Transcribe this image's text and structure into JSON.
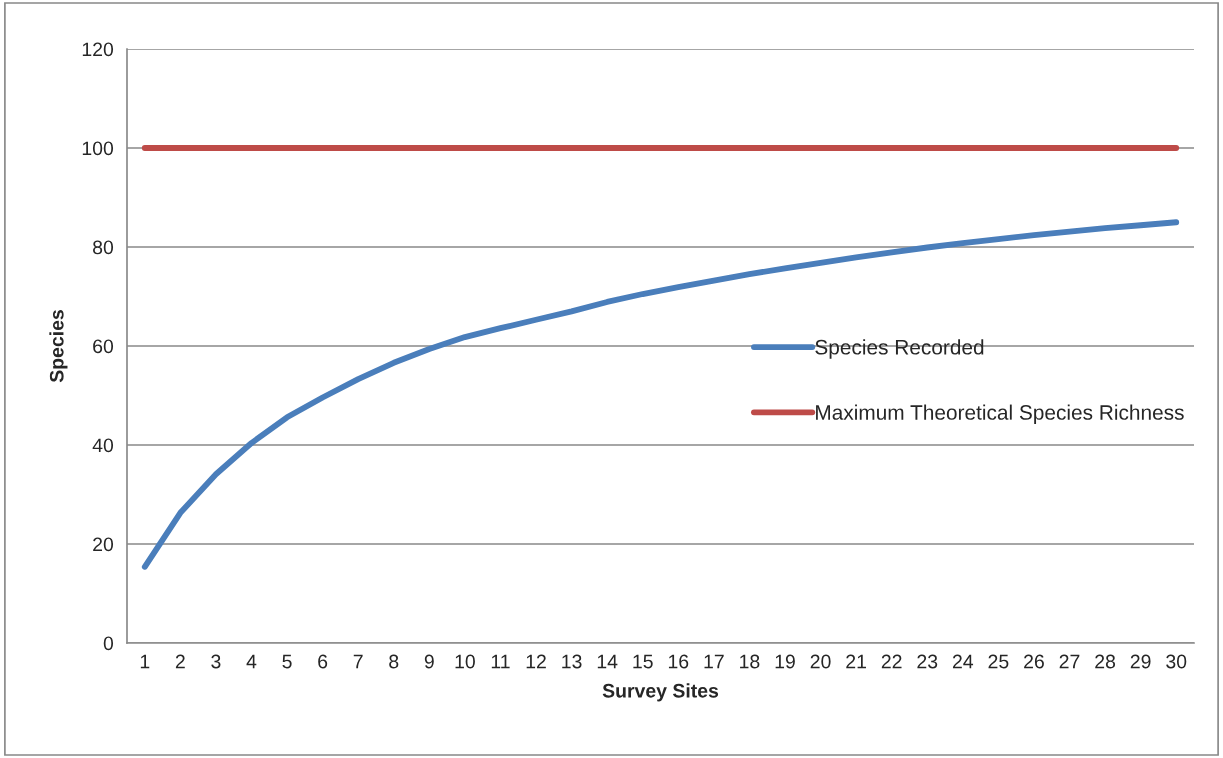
{
  "chart_data": {
    "type": "line",
    "xlabel": "Survey Sites",
    "ylabel": "Species",
    "categories": [
      "1",
      "2",
      "3",
      "4",
      "5",
      "6",
      "7",
      "8",
      "9",
      "10",
      "11",
      "12",
      "13",
      "14",
      "15",
      "16",
      "17",
      "18",
      "19",
      "20",
      "21",
      "22",
      "23",
      "24",
      "25",
      "26",
      "27",
      "28",
      "29",
      "30"
    ],
    "series": [
      {
        "name": "Species Recorded",
        "color": "#4a7ebb",
        "values": [
          15.4,
          26.3,
          34.1,
          40.4,
          45.6,
          49.6,
          53.3,
          56.6,
          59.4,
          61.8,
          63.6,
          65.3,
          67.0,
          68.9,
          70.5,
          71.9,
          73.2,
          74.5,
          75.7,
          76.8,
          77.9,
          78.9,
          79.9,
          80.8,
          81.6,
          82.4,
          83.1,
          83.8,
          84.4,
          85.0
        ]
      },
      {
        "name": "Maximum Theoretical Species Richness",
        "color": "#be4b48",
        "values": [
          100,
          100,
          100,
          100,
          100,
          100,
          100,
          100,
          100,
          100,
          100,
          100,
          100,
          100,
          100,
          100,
          100,
          100,
          100,
          100,
          100,
          100,
          100,
          100,
          100,
          100,
          100,
          100,
          100,
          100
        ]
      }
    ],
    "ylim": [
      0,
      120
    ],
    "yticks": [
      0,
      20,
      40,
      60,
      80,
      100,
      120
    ],
    "grid": "y",
    "legend": "right",
    "marker": "none",
    "line_style": "solid"
  }
}
